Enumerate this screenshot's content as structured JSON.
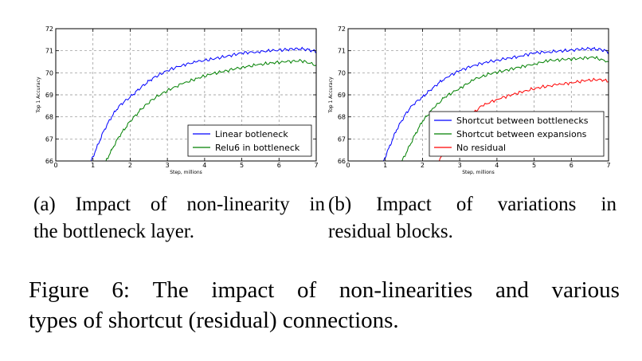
{
  "chart_data": [
    {
      "type": "line",
      "xlabel": "Step, millions",
      "ylabel": "Top 1 Accuracy",
      "xlim": [
        0,
        7
      ],
      "ylim": [
        66,
        72
      ],
      "xticks": [
        "0",
        "1",
        "2",
        "3",
        "4",
        "5",
        "6",
        "7"
      ],
      "yticks": [
        "66",
        "67",
        "68",
        "69",
        "70",
        "71",
        "72"
      ],
      "grid": true,
      "legend_position": "lower-right",
      "series": [
        {
          "name": "Linear botleneck",
          "color": "#0000ff",
          "x": [
            0.95,
            1.1,
            1.3,
            1.5,
            1.7,
            2.0,
            2.3,
            2.6,
            3.0,
            3.4,
            3.8,
            4.2,
            4.6,
            5.0,
            5.4,
            5.8,
            6.2,
            6.5,
            6.8,
            7.0
          ],
          "y": [
            66.0,
            66.6,
            67.4,
            68.0,
            68.5,
            68.9,
            69.35,
            69.75,
            70.1,
            70.35,
            70.5,
            70.62,
            70.75,
            70.9,
            70.95,
            71.0,
            71.05,
            71.1,
            71.05,
            70.95
          ]
        },
        {
          "name": "Relu6 in bottleneck",
          "color": "#008000",
          "x": [
            1.35,
            1.5,
            1.7,
            2.0,
            2.3,
            2.6,
            3.0,
            3.4,
            3.8,
            4.2,
            4.6,
            5.0,
            5.4,
            5.8,
            6.2,
            6.6,
            7.0
          ],
          "y": [
            66.0,
            66.5,
            67.1,
            67.8,
            68.35,
            68.8,
            69.2,
            69.5,
            69.75,
            69.95,
            70.1,
            70.25,
            70.35,
            70.45,
            70.5,
            70.55,
            70.35
          ]
        }
      ]
    },
    {
      "type": "line",
      "xlabel": "Step, millions",
      "ylabel": "Top 1 Accuracy",
      "xlim": [
        0,
        7
      ],
      "ylim": [
        66,
        72
      ],
      "xticks": [
        "0",
        "1",
        "2",
        "3",
        "4",
        "5",
        "6",
        "7"
      ],
      "yticks": [
        "66",
        "67",
        "68",
        "69",
        "70",
        "71",
        "72"
      ],
      "grid": true,
      "legend_position": "lower-right",
      "series": [
        {
          "name": "Shortcut between bottlenecks",
          "color": "#0000ff",
          "x": [
            0.95,
            1.1,
            1.3,
            1.5,
            1.7,
            2.0,
            2.3,
            2.6,
            3.0,
            3.4,
            3.8,
            4.2,
            4.6,
            5.0,
            5.4,
            5.8,
            6.2,
            6.5,
            6.8,
            7.0
          ],
          "y": [
            66.0,
            66.6,
            67.4,
            68.0,
            68.5,
            68.9,
            69.35,
            69.75,
            70.1,
            70.35,
            70.5,
            70.62,
            70.75,
            70.9,
            70.95,
            71.0,
            71.05,
            71.1,
            71.05,
            70.95
          ]
        },
        {
          "name": "Shortcut between expansions",
          "color": "#008000",
          "x": [
            1.45,
            1.6,
            1.8,
            2.0,
            2.3,
            2.6,
            3.0,
            3.4,
            3.8,
            4.2,
            4.6,
            5.0,
            5.4,
            5.8,
            6.2,
            6.6,
            7.0
          ],
          "y": [
            66.0,
            66.5,
            67.2,
            67.8,
            68.4,
            68.9,
            69.3,
            69.7,
            69.95,
            70.1,
            70.25,
            70.4,
            70.55,
            70.6,
            70.65,
            70.7,
            70.5
          ]
        },
        {
          "name": "No residual",
          "color": "#ff0000",
          "x": [
            2.45,
            2.7,
            3.0,
            3.3,
            3.6,
            4.0,
            4.4,
            4.8,
            5.2,
            5.6,
            6.0,
            6.4,
            6.8,
            7.0
          ],
          "y": [
            66.0,
            66.9,
            67.6,
            68.1,
            68.5,
            68.8,
            69.0,
            69.2,
            69.35,
            69.45,
            69.55,
            69.65,
            69.7,
            69.6
          ]
        }
      ]
    }
  ],
  "captions": {
    "a_line1": [
      "(a)",
      "Impact",
      "of",
      "non-linearity",
      "in"
    ],
    "a_line2": "the bottleneck layer.",
    "b_line1": [
      "(b)",
      "Impact",
      "of",
      "variations",
      "in"
    ],
    "b_line2": "residual blocks.",
    "figure_line1": [
      "Figure",
      "6:",
      "The",
      "impact",
      "of",
      "non-linearities",
      "and",
      "various"
    ],
    "figure_line2": "types of shortcut (residual) connections."
  }
}
